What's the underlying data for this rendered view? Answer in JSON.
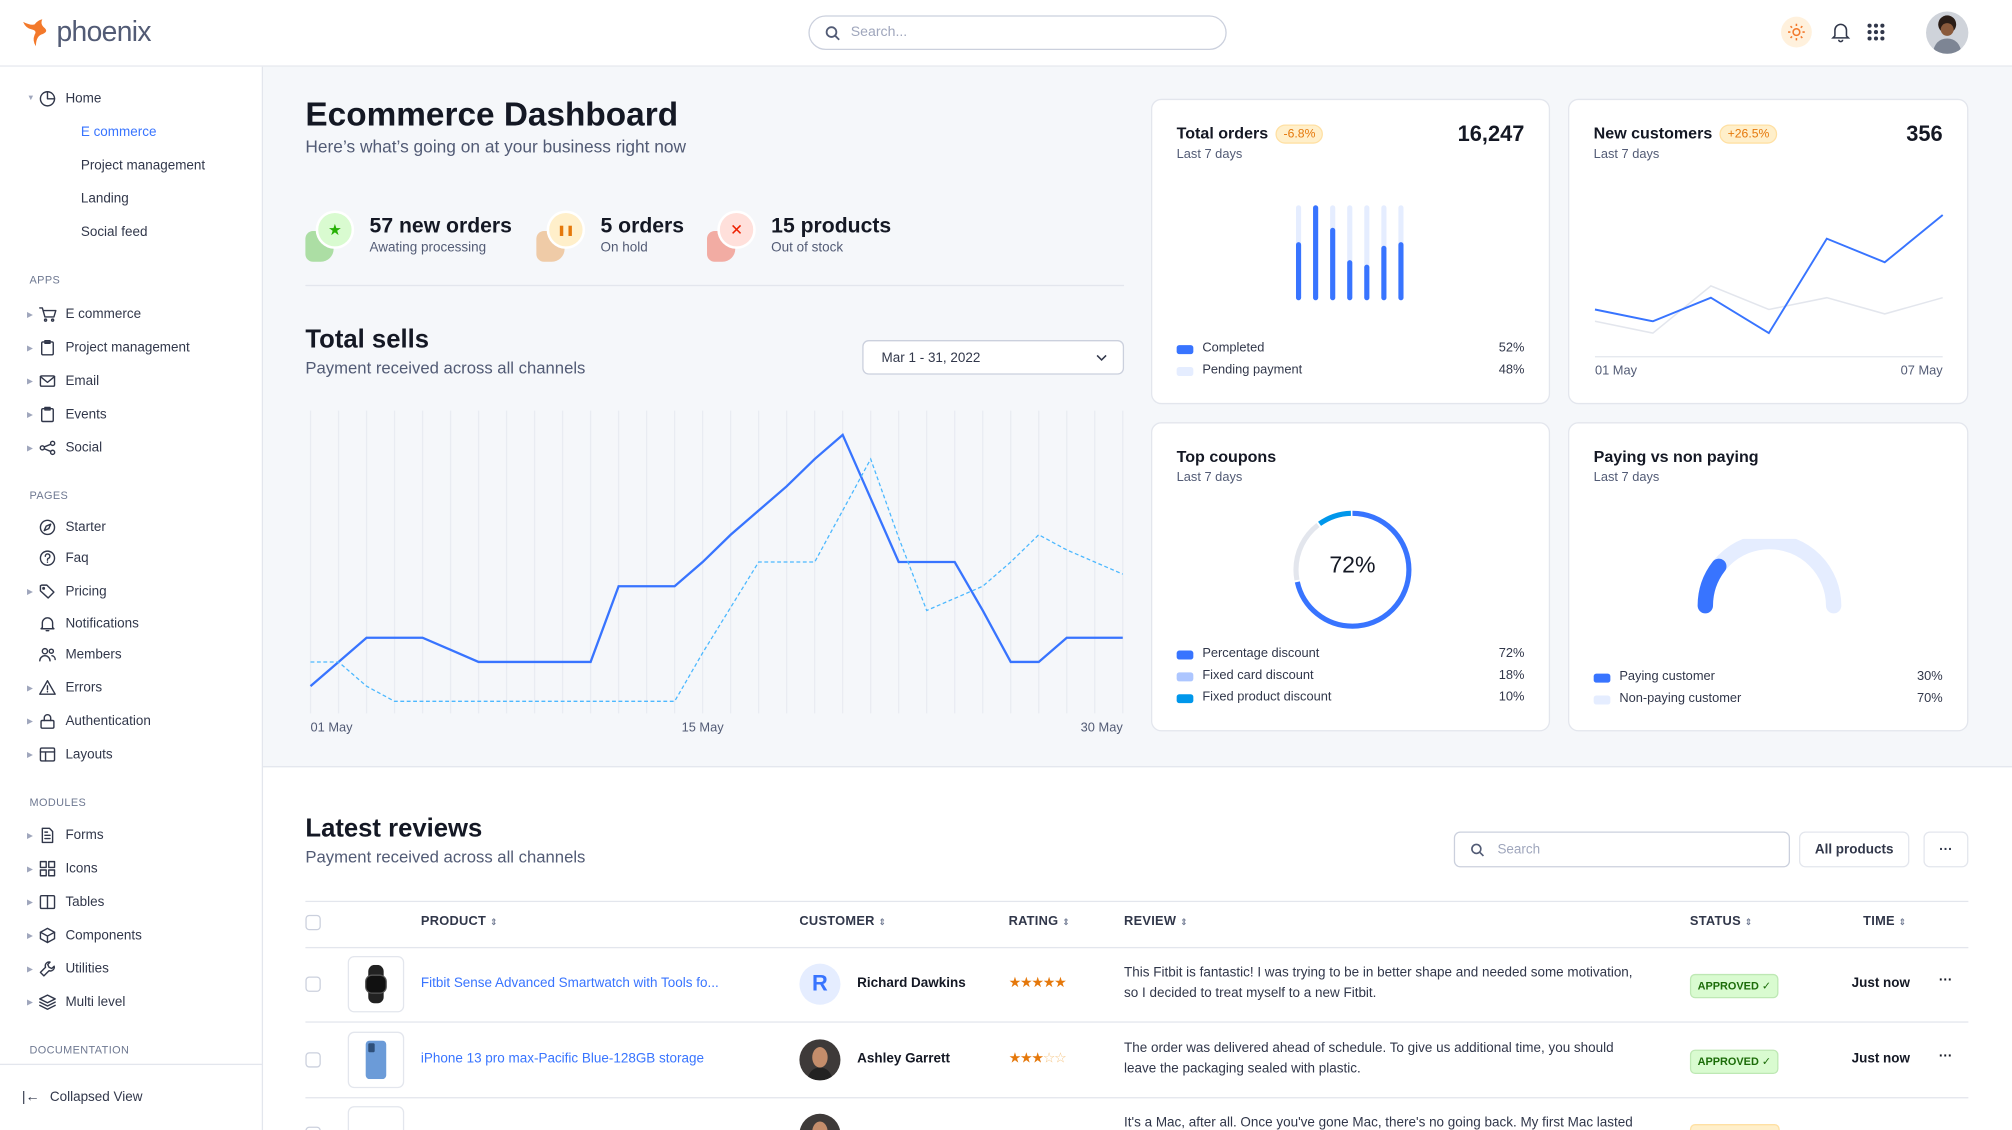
{
  "app": {
    "name": "phoenix",
    "search_placeholder": "Search..."
  },
  "colors": {
    "primary": "#3874ff",
    "accent_orange": "#e5780b",
    "success": "#25b003",
    "danger": "#ed2000",
    "light_blue": "#e5edff",
    "cyan": "#0097eb"
  },
  "sidebar": {
    "home": {
      "label": "Home",
      "icon": "pie-chart-icon",
      "children": [
        "E commerce",
        "Project management",
        "Landing",
        "Social feed"
      ],
      "active": "E commerce"
    },
    "sections": [
      {
        "title": "APPS",
        "items": [
          {
            "label": "E commerce",
            "icon": "cart-icon",
            "caret": true
          },
          {
            "label": "Project management",
            "icon": "clipboard-icon",
            "caret": true
          },
          {
            "label": "Email",
            "icon": "mail-icon",
            "caret": true
          },
          {
            "label": "Events",
            "icon": "clipboard-icon",
            "caret": true
          },
          {
            "label": "Social",
            "icon": "share-icon",
            "caret": true
          }
        ]
      },
      {
        "title": "PAGES",
        "items": [
          {
            "label": "Starter",
            "icon": "compass-icon",
            "caret": false
          },
          {
            "label": "Faq",
            "icon": "help-circle-icon",
            "caret": false
          },
          {
            "label": "Pricing",
            "icon": "tag-icon",
            "caret": true
          },
          {
            "label": "Notifications",
            "icon": "bell-icon",
            "caret": false
          },
          {
            "label": "Members",
            "icon": "users-icon",
            "caret": false
          },
          {
            "label": "Errors",
            "icon": "alert-triangle-icon",
            "caret": true
          },
          {
            "label": "Authentication",
            "icon": "lock-icon",
            "caret": true
          },
          {
            "label": "Layouts",
            "icon": "layout-icon",
            "caret": true
          }
        ]
      },
      {
        "title": "MODULES",
        "items": [
          {
            "label": "Forms",
            "icon": "file-text-icon",
            "caret": true
          },
          {
            "label": "Icons",
            "icon": "grid-icon",
            "caret": true
          },
          {
            "label": "Tables",
            "icon": "columns-icon",
            "caret": true
          },
          {
            "label": "Components",
            "icon": "package-icon",
            "caret": true
          },
          {
            "label": "Utilities",
            "icon": "tool-icon",
            "caret": true
          },
          {
            "label": "Multi level",
            "icon": "layers-icon",
            "caret": true
          }
        ]
      },
      {
        "title": "DOCUMENTATION",
        "items": []
      }
    ],
    "collapse_label": "Collapsed View"
  },
  "header": {
    "title": "Ecommerce Dashboard",
    "subtitle": "Here’s what’s going on at your business right now"
  },
  "stats": [
    {
      "value": "57 new orders",
      "label": "Awating processing",
      "icon": "star-icon",
      "color": "#25b003",
      "bg": "#d9fbd0"
    },
    {
      "value": "5 orders",
      "label": "On hold",
      "icon": "pause-icon",
      "color": "#e5780b",
      "bg": "#ffefca"
    },
    {
      "value": "15 products",
      "label": "Out of stock",
      "icon": "x-icon",
      "color": "#ed2000",
      "bg": "#ffe0db"
    }
  ],
  "total_sells": {
    "title": "Total sells",
    "subtitle": "Payment received across all channels",
    "date_range": "Mar 1 - 31, 2022"
  },
  "cards": {
    "total_orders": {
      "title": "Total orders",
      "badge": "-6.8%",
      "period": "Last 7 days",
      "value": "16,247",
      "legend": [
        {
          "name": "Completed",
          "value": "52%",
          "color": "#3874ff"
        },
        {
          "name": "Pending payment",
          "value": "48%",
          "color": "#e5edff"
        }
      ]
    },
    "new_customers": {
      "title": "New customers",
      "badge": "+26.5%",
      "period": "Last 7 days",
      "value": "356"
    },
    "top_coupons": {
      "title": "Top coupons",
      "period": "Last 7 days",
      "center": "72%",
      "legend": [
        {
          "name": "Percentage discount",
          "value": "72%",
          "color": "#3874ff"
        },
        {
          "name": "Fixed card discount",
          "value": "18%",
          "color": "#adc6ff"
        },
        {
          "name": "Fixed product discount",
          "value": "10%",
          "color": "#0097eb"
        }
      ]
    },
    "paying": {
      "title": "Paying vs non paying",
      "period": "Last 7 days",
      "legend": [
        {
          "name": "Paying customer",
          "value": "30%",
          "color": "#3874ff"
        },
        {
          "name": "Non-paying customer",
          "value": "70%",
          "color": "#e5edff"
        }
      ]
    }
  },
  "chart_data": [
    {
      "type": "line",
      "title": "Total sells",
      "x": [
        "01 May",
        "02 May",
        "03 May",
        "04 May",
        "05 May",
        "06 May",
        "07 May",
        "08 May",
        "09 May",
        "10 May",
        "11 May",
        "12 May",
        "13 May",
        "14 May",
        "15 May",
        "16 May",
        "17 May",
        "18 May",
        "19 May",
        "20 May",
        "21 May",
        "22 May",
        "23 May",
        "24 May",
        "25 May",
        "26 May",
        "27 May",
        "28 May",
        "29 May",
        "30 May"
      ],
      "xtick_labels": [
        "01 May",
        "15 May",
        "30 May"
      ],
      "grid": "vertical",
      "ylim": [
        0,
        100
      ],
      "series": [
        {
          "style": "solid",
          "color": "#3874ff",
          "values": [
            9,
            17,
            25,
            25,
            25,
            21,
            17,
            17,
            17,
            17,
            17,
            42,
            42,
            42,
            50,
            59,
            67,
            75,
            84,
            92,
            71,
            50,
            50,
            50,
            34,
            17,
            17,
            25,
            25,
            25
          ]
        },
        {
          "style": "dashed",
          "color": "#4cb8ff",
          "values": [
            17,
            17,
            9,
            4,
            4,
            4,
            4,
            4,
            4,
            4,
            4,
            4,
            4,
            4,
            20,
            35,
            50,
            50,
            50,
            67,
            84,
            58,
            34,
            38,
            42,
            50,
            59,
            54,
            50,
            46
          ]
        }
      ]
    },
    {
      "type": "bar",
      "title": "Total orders",
      "stacked": true,
      "categories": [
        "1",
        "2",
        "3",
        "4",
        "5",
        "6",
        "7"
      ],
      "series": [
        {
          "name": "Completed",
          "values": [
            59,
            100,
            75,
            39,
            34,
            55,
            59
          ]
        },
        {
          "name": "Pending payment",
          "values": [
            41,
            0,
            25,
            61,
            66,
            45,
            41
          ]
        }
      ]
    },
    {
      "type": "line",
      "title": "New customers",
      "x": [
        "01 May",
        "02 May",
        "03 May",
        "04 May",
        "05 May",
        "06 May",
        "07 May"
      ],
      "xtick_labels": [
        "01 May",
        "07 May"
      ],
      "series": [
        {
          "color": "#3874ff",
          "values": [
            32,
            24,
            40,
            16,
            80,
            64,
            96
          ]
        },
        {
          "color": "#e3e6ed",
          "values": [
            24,
            16,
            48,
            32,
            40,
            29,
            40
          ]
        }
      ]
    },
    {
      "type": "pie",
      "title": "Top coupons",
      "donut": true,
      "labels": [
        "Percentage discount",
        "Fixed card discount",
        "Fixed product discount"
      ],
      "values": [
        72,
        18,
        10
      ]
    },
    {
      "type": "pie",
      "title": "Paying vs non paying",
      "gauge": true,
      "labels": [
        "Paying customer",
        "Non-paying customer"
      ],
      "values": [
        30,
        70
      ]
    }
  ],
  "reviews": {
    "title": "Latest reviews",
    "subtitle": "Payment received across all channels",
    "search_placeholder": "Search",
    "filter_label": "All products",
    "more_label": "···",
    "columns": [
      "PRODUCT",
      "CUSTOMER",
      "RATING",
      "REVIEW",
      "STATUS",
      "TIME"
    ],
    "rows": [
      {
        "product": "Fitbit Sense Advanced Smartwatch with Tools fo...",
        "customer": "Richard Dawkins",
        "avatar_initial": "R",
        "rating": 5,
        "review_lines": [
          "This Fitbit is fantastic! I was trying to be in better shape and needed some motivation,",
          "so I decided to treat myself to a new Fitbit."
        ],
        "status": "APPROVED ✓",
        "time": "Just now"
      },
      {
        "product": "iPhone 13 pro max-Pacific Blue-128GB storage",
        "customer": "Ashley Garrett",
        "rating": 3,
        "review_lines": [
          "The order was delivered ahead of schedule. To give us additional time, you should",
          "leave the packaging sealed with plastic."
        ],
        "status": "APPROVED ✓",
        "time": "Just now"
      },
      {
        "product": "",
        "customer": "",
        "rating": 0,
        "review_lines": [
          "It's a Mac, after all. Once you've gone Mac, there's no going back. My first Mac lasted",
          ""
        ],
        "status": "",
        "time": ""
      }
    ]
  }
}
